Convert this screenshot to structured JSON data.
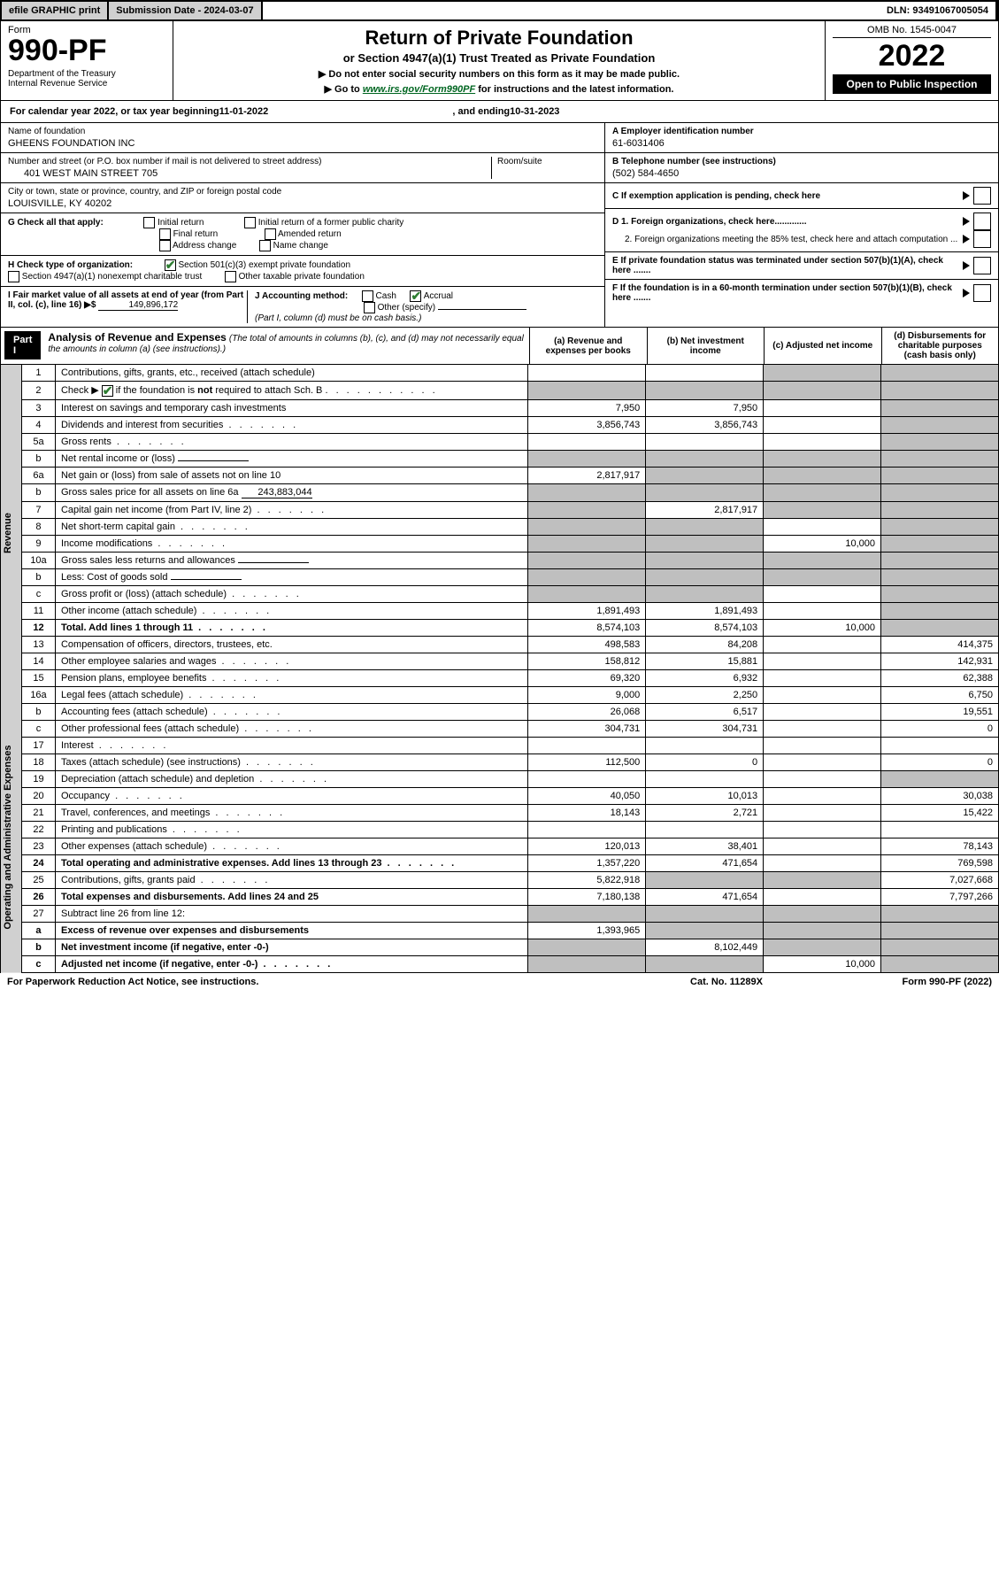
{
  "topbar": {
    "efile": "efile GRAPHIC print",
    "submission": "Submission Date - 2024-03-07",
    "dln": "DLN: 93491067005054"
  },
  "header": {
    "form_label": "Form",
    "form_number": "990-PF",
    "dept": "Department of the Treasury\nInternal Revenue Service",
    "title": "Return of Private Foundation",
    "subtitle": "or Section 4947(a)(1) Trust Treated as Private Foundation",
    "note1": "▶ Do not enter social security numbers on this form as it may be made public.",
    "note2_prefix": "▶ Go to ",
    "note2_link": "www.irs.gov/Form990PF",
    "note2_suffix": " for instructions and the latest information.",
    "omb": "OMB No. 1545-0047",
    "year": "2022",
    "open_public": "Open to Public Inspection"
  },
  "calyear": {
    "prefix": "For calendar year 2022, or tax year beginning ",
    "begin": "11-01-2022",
    "mid": " , and ending ",
    "end": "10-31-2023"
  },
  "identity": {
    "name_label": "Name of foundation",
    "name": "GHEENS FOUNDATION INC",
    "addr_label": "Number and street (or P.O. box number if mail is not delivered to street address)",
    "addr": "401 WEST MAIN STREET 705",
    "room_label": "Room/suite",
    "city_label": "City or town, state or province, country, and ZIP or foreign postal code",
    "city": "LOUISVILLE, KY  40202",
    "a_label": "A Employer identification number",
    "a_val": "61-6031406",
    "b_label": "B Telephone number (see instructions)",
    "b_val": "(502) 584-4650",
    "c_label": "C If exemption application is pending, check here",
    "d1_label": "D 1. Foreign organizations, check here.............",
    "d2_label": "2. Foreign organizations meeting the 85% test, check here and attach computation ...",
    "e_label": "E  If private foundation status was terminated under section 507(b)(1)(A), check here .......",
    "f_label": "F  If the foundation is in a 60-month termination under section 507(b)(1)(B), check here .......",
    "g_label": "G Check all that apply:",
    "g_opts": [
      "Initial return",
      "Final return",
      "Address change",
      "Initial return of a former public charity",
      "Amended return",
      "Name change"
    ],
    "h_label": "H Check type of organization:",
    "h_opt1": "Section 501(c)(3) exempt private foundation",
    "h_opt2": "Section 4947(a)(1) nonexempt charitable trust",
    "h_opt3": "Other taxable private foundation",
    "i_label": "I Fair market value of all assets at end of year (from Part II, col. (c), line 16) ▶$",
    "i_val": "149,896,172",
    "j_label": "J Accounting method:",
    "j_cash": "Cash",
    "j_accrual": "Accrual",
    "j_other": "Other (specify)",
    "j_note": "(Part I, column (d) must be on cash basis.)"
  },
  "part1": {
    "label": "Part I",
    "title": "Analysis of Revenue and Expenses",
    "title_note": "(The total of amounts in columns (b), (c), and (d) may not necessarily equal the amounts in column (a) (see instructions).)",
    "col_a": "(a)   Revenue and expenses per books",
    "col_b": "(b)   Net investment income",
    "col_c": "(c)   Adjusted net income",
    "col_d": "(d)   Disbursements for charitable purposes (cash basis only)"
  },
  "side_labels": {
    "revenue": "Revenue",
    "expenses": "Operating and Administrative Expenses"
  },
  "rows": [
    {
      "n": "1",
      "label": "Contributions, gifts, grants, etc., received (attach schedule)",
      "a": "",
      "b": "",
      "c": "sh",
      "d": "sh"
    },
    {
      "n": "2",
      "label": "Check ▶ ☑ if the foundation is not required to attach Sch. B",
      "a": "sh",
      "b": "sh",
      "c": "sh",
      "d": "sh",
      "dotted": true
    },
    {
      "n": "3",
      "label": "Interest on savings and temporary cash investments",
      "a": "7,950",
      "b": "7,950",
      "c": "",
      "d": "sh"
    },
    {
      "n": "4",
      "label": "Dividends and interest from securities",
      "a": "3,856,743",
      "b": "3,856,743",
      "c": "",
      "d": "sh",
      "dotted": true
    },
    {
      "n": "5a",
      "label": "Gross rents",
      "a": "",
      "b": "",
      "c": "",
      "d": "sh",
      "dotted": true
    },
    {
      "n": "b",
      "label": "Net rental income or (loss)",
      "a": "sh",
      "b": "sh",
      "c": "sh",
      "d": "sh",
      "inline_val": ""
    },
    {
      "n": "6a",
      "label": "Net gain or (loss) from sale of assets not on line 10",
      "a": "2,817,917",
      "b": "sh",
      "c": "sh",
      "d": "sh"
    },
    {
      "n": "b",
      "label": "Gross sales price for all assets on line 6a",
      "a": "sh",
      "b": "sh",
      "c": "sh",
      "d": "sh",
      "inline_val": "243,883,044"
    },
    {
      "n": "7",
      "label": "Capital gain net income (from Part IV, line 2)",
      "a": "sh",
      "b": "2,817,917",
      "c": "sh",
      "d": "sh",
      "dotted": true
    },
    {
      "n": "8",
      "label": "Net short-term capital gain",
      "a": "sh",
      "b": "sh",
      "c": "",
      "d": "sh",
      "dotted": true
    },
    {
      "n": "9",
      "label": "Income modifications",
      "a": "sh",
      "b": "sh",
      "c": "10,000",
      "d": "sh",
      "dotted": true
    },
    {
      "n": "10a",
      "label": "Gross sales less returns and allowances",
      "a": "sh",
      "b": "sh",
      "c": "sh",
      "d": "sh",
      "inline_val": ""
    },
    {
      "n": "b",
      "label": "Less: Cost of goods sold",
      "a": "sh",
      "b": "sh",
      "c": "sh",
      "d": "sh",
      "inline_val": "",
      "dotted": true
    },
    {
      "n": "c",
      "label": "Gross profit or (loss) (attach schedule)",
      "a": "sh",
      "b": "sh",
      "c": "",
      "d": "sh",
      "dotted": true
    },
    {
      "n": "11",
      "label": "Other income (attach schedule)",
      "a": "1,891,493",
      "b": "1,891,493",
      "c": "",
      "d": "sh",
      "dotted": true
    },
    {
      "n": "12",
      "label": "Total. Add lines 1 through 11",
      "a": "8,574,103",
      "b": "8,574,103",
      "c": "10,000",
      "d": "sh",
      "bold": true,
      "dotted": true
    },
    {
      "n": "13",
      "label": "Compensation of officers, directors, trustees, etc.",
      "a": "498,583",
      "b": "84,208",
      "c": "",
      "d": "414,375"
    },
    {
      "n": "14",
      "label": "Other employee salaries and wages",
      "a": "158,812",
      "b": "15,881",
      "c": "",
      "d": "142,931",
      "dotted": true
    },
    {
      "n": "15",
      "label": "Pension plans, employee benefits",
      "a": "69,320",
      "b": "6,932",
      "c": "",
      "d": "62,388",
      "dotted": true
    },
    {
      "n": "16a",
      "label": "Legal fees (attach schedule)",
      "a": "9,000",
      "b": "2,250",
      "c": "",
      "d": "6,750",
      "dotted": true
    },
    {
      "n": "b",
      "label": "Accounting fees (attach schedule)",
      "a": "26,068",
      "b": "6,517",
      "c": "",
      "d": "19,551",
      "dotted": true
    },
    {
      "n": "c",
      "label": "Other professional fees (attach schedule)",
      "a": "304,731",
      "b": "304,731",
      "c": "",
      "d": "0",
      "dotted": true
    },
    {
      "n": "17",
      "label": "Interest",
      "a": "",
      "b": "",
      "c": "",
      "d": "",
      "dotted": true
    },
    {
      "n": "18",
      "label": "Taxes (attach schedule) (see instructions)",
      "a": "112,500",
      "b": "0",
      "c": "",
      "d": "0",
      "dotted": true
    },
    {
      "n": "19",
      "label": "Depreciation (attach schedule) and depletion",
      "a": "",
      "b": "",
      "c": "",
      "d": "sh",
      "dotted": true
    },
    {
      "n": "20",
      "label": "Occupancy",
      "a": "40,050",
      "b": "10,013",
      "c": "",
      "d": "30,038",
      "dotted": true
    },
    {
      "n": "21",
      "label": "Travel, conferences, and meetings",
      "a": "18,143",
      "b": "2,721",
      "c": "",
      "d": "15,422",
      "dotted": true
    },
    {
      "n": "22",
      "label": "Printing and publications",
      "a": "",
      "b": "",
      "c": "",
      "d": "",
      "dotted": true
    },
    {
      "n": "23",
      "label": "Other expenses (attach schedule)",
      "a": "120,013",
      "b": "38,401",
      "c": "",
      "d": "78,143",
      "dotted": true
    },
    {
      "n": "24",
      "label": "Total operating and administrative expenses. Add lines 13 through 23",
      "a": "1,357,220",
      "b": "471,654",
      "c": "",
      "d": "769,598",
      "bold": true,
      "dotted": true
    },
    {
      "n": "25",
      "label": "Contributions, gifts, grants paid",
      "a": "5,822,918",
      "b": "sh",
      "c": "sh",
      "d": "7,027,668",
      "dotted": true
    },
    {
      "n": "26",
      "label": "Total expenses and disbursements. Add lines 24 and 25",
      "a": "7,180,138",
      "b": "471,654",
      "c": "",
      "d": "7,797,266",
      "bold": true
    },
    {
      "n": "27",
      "label": "Subtract line 26 from line 12:",
      "a": "sh",
      "b": "sh",
      "c": "sh",
      "d": "sh"
    },
    {
      "n": "a",
      "label": "Excess of revenue over expenses and disbursements",
      "a": "1,393,965",
      "b": "sh",
      "c": "sh",
      "d": "sh",
      "bold": true
    },
    {
      "n": "b",
      "label": "Net investment income (if negative, enter -0-)",
      "a": "sh",
      "b": "8,102,449",
      "c": "sh",
      "d": "sh",
      "bold": true
    },
    {
      "n": "c",
      "label": "Adjusted net income (if negative, enter -0-)",
      "a": "sh",
      "b": "sh",
      "c": "10,000",
      "d": "sh",
      "bold": true,
      "dotted": true
    }
  ],
  "footer": {
    "left": "For Paperwork Reduction Act Notice, see instructions.",
    "center": "Cat. No. 11289X",
    "right": "Form 990-PF (2022)"
  }
}
